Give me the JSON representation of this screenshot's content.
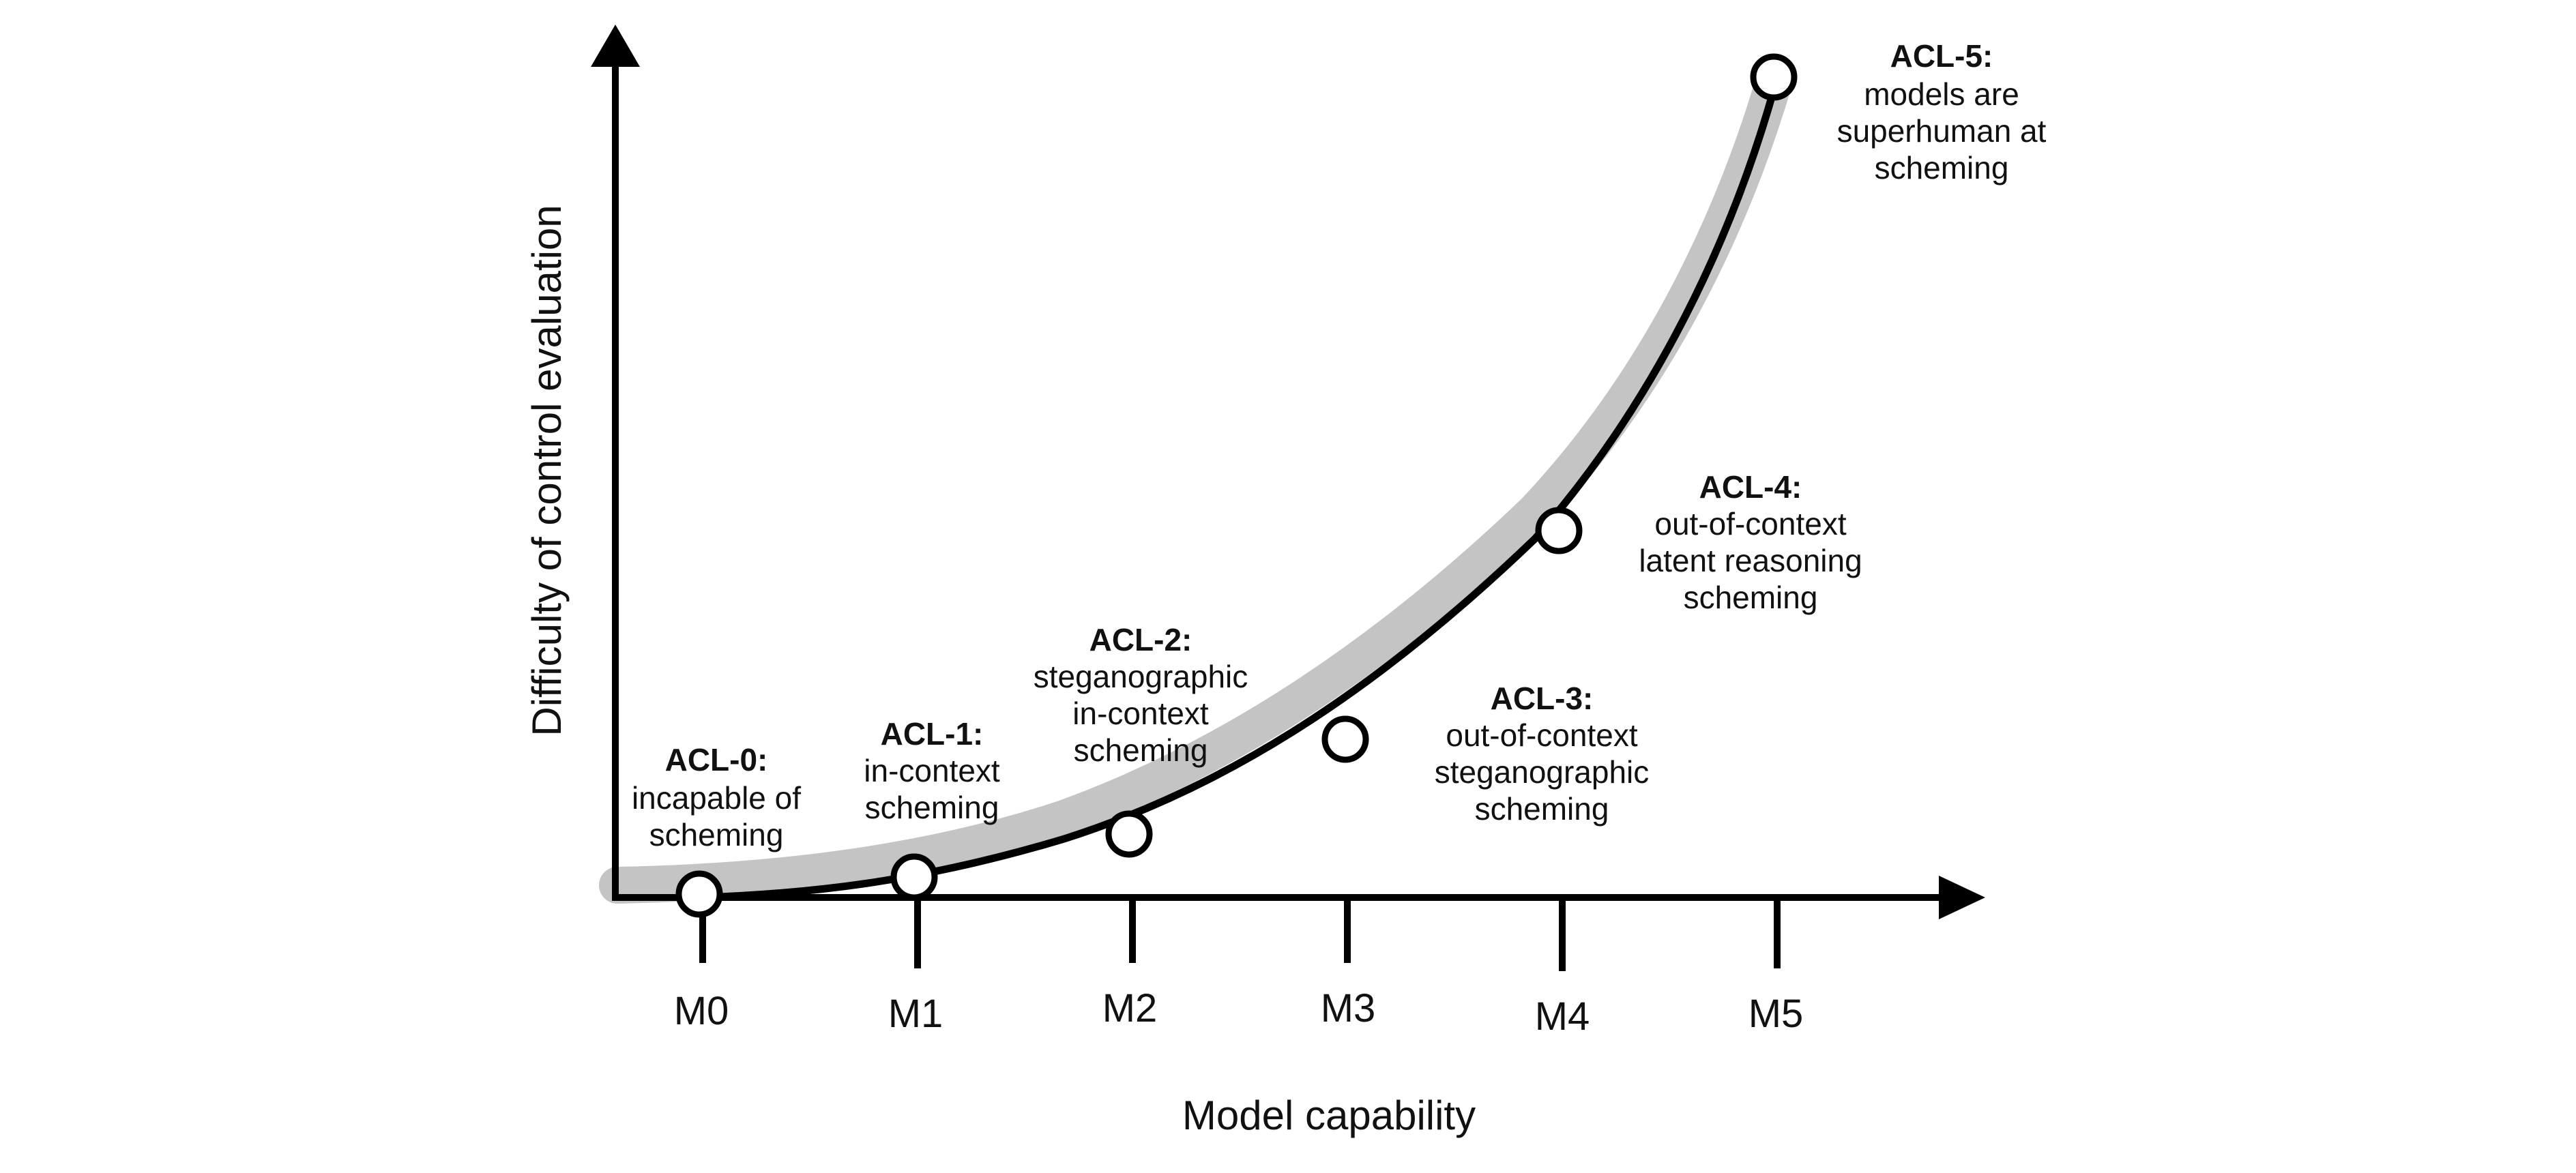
{
  "axes": {
    "x_title": "Model capability",
    "y_title": "Difficulty of control evaluation"
  },
  "ticks": [
    "M0",
    "M1",
    "M2",
    "M3",
    "M4",
    "M5"
  ],
  "levels": [
    {
      "title": "ACL-0:",
      "lines": [
        "incapable of",
        "scheming"
      ]
    },
    {
      "title": "ACL-1:",
      "lines": [
        "in-context",
        "scheming"
      ]
    },
    {
      "title": "ACL-2:",
      "lines": [
        "steganographic",
        "in-context",
        "scheming"
      ]
    },
    {
      "title": "ACL-3:",
      "lines": [
        "out-of-context",
        "steganographic",
        "scheming"
      ]
    },
    {
      "title": "ACL-4:",
      "lines": [
        "out-of-context",
        "latent reasoning",
        "scheming"
      ]
    },
    {
      "title": "ACL-5:",
      "lines": [
        "models are",
        "superhuman at",
        "scheming"
      ]
    }
  ],
  "colors": {
    "axis": "#000000",
    "curve": "#000000",
    "band": "#c4c4c4",
    "marker_fill": "#ffffff"
  }
}
